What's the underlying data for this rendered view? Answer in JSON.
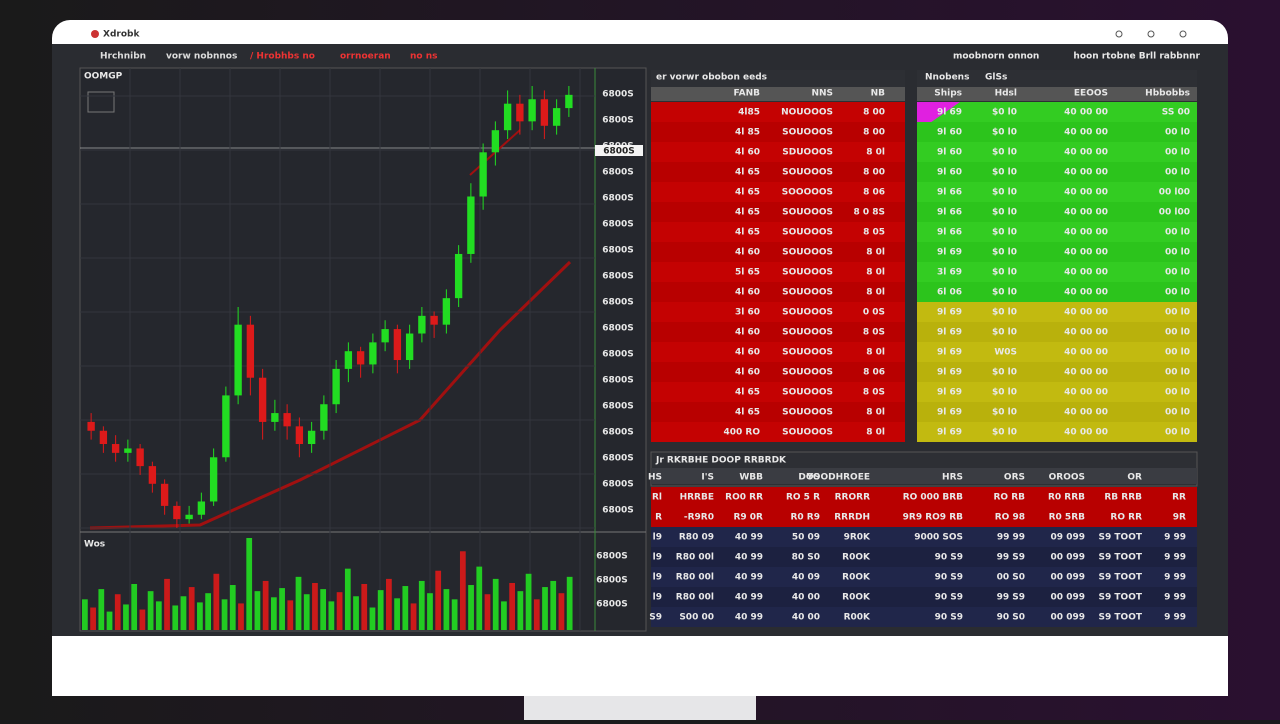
{
  "window": {
    "logo": "Xdrobk"
  },
  "toolbar": {
    "left": [
      "Hrchnibn",
      "vorw nobnnos",
      "/ Hrobhbs no",
      "orrnoeran",
      "no ns"
    ],
    "right": [
      "moobnorn onnon",
      "hoon rtobne Brll rabbnnr"
    ]
  },
  "chart": {
    "label": "OOMGP",
    "highlight_label": "6800S",
    "price_labels": [
      "6800S",
      "6800S",
      "6800S",
      "6800S",
      "6800S",
      "6800S",
      "6800S",
      "6800S",
      "6800S",
      "6800S",
      "6800S",
      "6800S",
      "6800S",
      "6800S",
      "6800S",
      "6800S",
      "6800S"
    ],
    "candles": [
      [
        24,
        26,
        20,
        22
      ],
      [
        22,
        23,
        17,
        19
      ],
      [
        19,
        21,
        15,
        17
      ],
      [
        17,
        20,
        15,
        18
      ],
      [
        18,
        19,
        12,
        14
      ],
      [
        14,
        15,
        8,
        10
      ],
      [
        10,
        11,
        3,
        5
      ],
      [
        5,
        6,
        0,
        2
      ],
      [
        2,
        5,
        1,
        3
      ],
      [
        3,
        8,
        2,
        6
      ],
      [
        6,
        18,
        5,
        16
      ],
      [
        16,
        32,
        15,
        30
      ],
      [
        30,
        50,
        28,
        46
      ],
      [
        46,
        48,
        30,
        34
      ],
      [
        34,
        36,
        20,
        24
      ],
      [
        24,
        29,
        22,
        26
      ],
      [
        26,
        28,
        20,
        23
      ],
      [
        23,
        25,
        16,
        19
      ],
      [
        19,
        24,
        17,
        22
      ],
      [
        22,
        30,
        20,
        28
      ],
      [
        28,
        38,
        26,
        36
      ],
      [
        36,
        42,
        33,
        40
      ],
      [
        40,
        41,
        34,
        37
      ],
      [
        37,
        44,
        35,
        42
      ],
      [
        42,
        47,
        40,
        45
      ],
      [
        45,
        46,
        35,
        38
      ],
      [
        38,
        46,
        36,
        44
      ],
      [
        44,
        50,
        42,
        48
      ],
      [
        48,
        49,
        43,
        46
      ],
      [
        46,
        54,
        44,
        52
      ],
      [
        52,
        64,
        50,
        62
      ],
      [
        62,
        78,
        60,
        75
      ],
      [
        75,
        87,
        72,
        85
      ],
      [
        85,
        92,
        82,
        90
      ],
      [
        90,
        99,
        88,
        96
      ],
      [
        96,
        98,
        89,
        92
      ],
      [
        92,
        100,
        90,
        97
      ],
      [
        97,
        99,
        88,
        91
      ],
      [
        91,
        97,
        89,
        95
      ],
      [
        95,
        100,
        93,
        98
      ]
    ],
    "volume_label": "Wos",
    "volume_labels": [
      "6800S",
      "6800S",
      "6800S"
    ],
    "volume": [
      30,
      22,
      40,
      18,
      35,
      25,
      45,
      20,
      38,
      28,
      50,
      24,
      33,
      42,
      27,
      36,
      55,
      30,
      44,
      26,
      90,
      38,
      48,
      32,
      41,
      29,
      52,
      35,
      46,
      40,
      28,
      37,
      60,
      33,
      45,
      22,
      39,
      50,
      31,
      43,
      26,
      48,
      36,
      58,
      40,
      30,
      77,
      44,
      62,
      35,
      50,
      28,
      46,
      38,
      55,
      30,
      42,
      48,
      36,
      52
    ]
  },
  "order_book": {
    "title": "er vorwr obobon eeds",
    "headers": [
      "FANB",
      "NNS",
      "NB"
    ],
    "rows": [
      [
        "4l85",
        "NOUOOOS",
        "8 00"
      ],
      [
        "4l 85",
        "SOUOOOS",
        "8 00"
      ],
      [
        "4l 60",
        "SDUOOOS",
        "8 0l"
      ],
      [
        "4l 65",
        "SOUOOOS",
        "8 00"
      ],
      [
        "4l 65",
        "SOOOOOS",
        "8 06"
      ],
      [
        "4l 65",
        "SOUOOOS",
        "8 0 8S"
      ],
      [
        "4l 65",
        "SOUOOOS",
        "8 05"
      ],
      [
        "4l 60",
        "SOUOOOS",
        "8 0l"
      ],
      [
        "5l 65",
        "SOUOOOS",
        "8 0l"
      ],
      [
        "4l 60",
        "SOUOOOS",
        "8 0l"
      ],
      [
        "3l 60",
        "SOUOOOS",
        "0 0S"
      ],
      [
        "4l 60",
        "SOUOOOS",
        "8 0S"
      ],
      [
        "4l 60",
        "SOUOOOS",
        "8 0l"
      ],
      [
        "4l 60",
        "SOUOOOS",
        "8 06"
      ],
      [
        "4l 65",
        "SOUOOOS",
        "8 0S"
      ],
      [
        "4l 65",
        "SOUOOOS",
        "8 0l"
      ],
      [
        "400 RO",
        "SOUOOOS",
        "8 0l"
      ]
    ]
  },
  "quotes": {
    "title": [
      "Nnobens",
      "GlSs"
    ],
    "headers": [
      "Ships",
      "Hdsl",
      "EEOOS",
      "Hbbobbs"
    ],
    "rows": [
      [
        "9l 69",
        "$0 l0",
        "40 00 00",
        "SS 00"
      ],
      [
        "9l 60",
        "$0 l0",
        "40 00 00",
        "00 l0"
      ],
      [
        "9l 60",
        "$0 l0",
        "40 00 00",
        "00 l0"
      ],
      [
        "9l 60",
        "$0 l0",
        "40 00 00",
        "00 l0"
      ],
      [
        "9l 66",
        "$0 l0",
        "40 00 00",
        "00 l00"
      ],
      [
        "9l 66",
        "$0 l0",
        "40 00 00",
        "00 l00"
      ],
      [
        "9l 66",
        "$0 l0",
        "40 00 00",
        "00 l0"
      ],
      [
        "9l 69",
        "$0 l0",
        "40 00 00",
        "00 l0"
      ],
      [
        "3l 69",
        "$0 l0",
        "40 00 00",
        "00 l0"
      ],
      [
        "6l 06",
        "$0 l0",
        "40 00 00",
        "00 l0"
      ],
      [
        "9l 69",
        "$0 l0",
        "40 00 00",
        "00 l0"
      ],
      [
        "9l 69",
        "$0 l0",
        "40 00 00",
        "00 l0"
      ],
      [
        "9l 69",
        "W0S",
        "40 00 00",
        "00 l0"
      ],
      [
        "9l 69",
        "$0 l0",
        "40 00 00",
        "00 l0"
      ],
      [
        "9l 69",
        "$0 l0",
        "40 00 00",
        "00 l0"
      ],
      [
        "9l 69",
        "$0 l0",
        "40 00 00",
        "00 l0"
      ],
      [
        "9l 69",
        "$0 l0",
        "40 00 00",
        "00 l0"
      ]
    ]
  },
  "trades": {
    "title": "Jr RKRBHE DOOP RRBRDK",
    "headers": [
      "HS",
      "I'S",
      "WBB",
      "DOS",
      "YOODHROEE",
      "HRS",
      "ORS",
      "OROOS",
      "OR",
      ""
    ],
    "rows": [
      [
        "Rl",
        "HRRBE",
        "RO0 RR",
        "RO 5 R",
        "RRORR",
        "RO 000 BRB",
        "RO RB",
        "R0 RRB",
        "RB RRB",
        "RR"
      ],
      [
        "R",
        "-R9R0",
        "R9 0R",
        "R0 R9",
        "RRRDH",
        "9R9 RO9 RB",
        "RO 98",
        "R0 5RB",
        "RO RR",
        "9R"
      ],
      [
        "l9",
        "R80 09",
        "40 99",
        "50 09",
        "9R0K",
        "9000 SOS",
        "99 99",
        "09 099",
        "S9 TOOT",
        "9 99"
      ],
      [
        "l9",
        "R80 00l",
        "40 99",
        "80 S0",
        "R0OK",
        "90 S9",
        "99 S9",
        "00 099",
        "S9 TOOT",
        "9 99"
      ],
      [
        "l9",
        "R80 00l",
        "40 99",
        "40 09",
        "R0OK",
        "90 S9",
        "00 S0",
        "00 099",
        "S9 TOOT",
        "9 99"
      ],
      [
        "l9",
        "R80 00l",
        "40 99",
        "40 00",
        "R0OK",
        "90 S9",
        "99 S9",
        "00 099",
        "S9 TOOT",
        "9 99"
      ],
      [
        "S9",
        "S00 00",
        "40 99",
        "40 00",
        "R00K",
        "90 S9",
        "90 S0",
        "00 099",
        "S9 TOOT",
        "9 99"
      ]
    ]
  }
}
